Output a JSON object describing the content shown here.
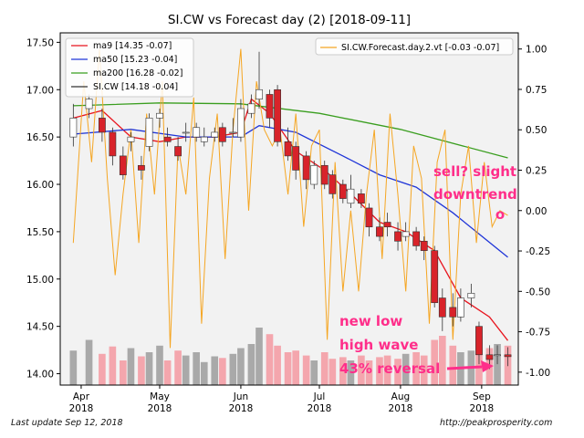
{
  "chart_data": {
    "type": "candlestick",
    "title": "SI.CW vs Forecast day (2)  [2018-09-11]",
    "x_ticks": [
      {
        "label": "Apr\n2018",
        "date": "2018-04-01"
      },
      {
        "label": "May\n2018",
        "date": "2018-05-01"
      },
      {
        "label": "Jun\n2018",
        "date": "2018-06-01"
      },
      {
        "label": "Jul\n2018",
        "date": "2018-07-01"
      },
      {
        "label": "Aug\n2018",
        "date": "2018-08-01"
      },
      {
        "label": "Sep\n2018",
        "date": "2018-09-01"
      }
    ],
    "xlim": [
      "2018-03-24",
      "2018-09-15"
    ],
    "y_left": {
      "ylim": [
        13.88,
        17.6
      ],
      "ticks": [
        "14.00",
        "14.50",
        "15.00",
        "15.50",
        "16.00",
        "16.50",
        "17.00",
        "17.50"
      ]
    },
    "y_right": {
      "ylim": [
        -1.08,
        1.1
      ],
      "ticks": [
        "-1.00",
        "-0.75",
        "-0.50",
        "-0.25",
        "0.00",
        "0.25",
        "0.50",
        "0.75",
        "1.00"
      ]
    },
    "legend_left": [
      {
        "label": "ma9 [14.35 -0.07]",
        "color": "#e8141e"
      },
      {
        "label": "ma50 [15.23 -0.04]",
        "color": "#1f35d8"
      },
      {
        "label": "ma200 [16.28 -0.02]",
        "color": "#3a9e1f"
      },
      {
        "label": "SI.CW [14.18 -0.04]",
        "color": "#333333"
      }
    ],
    "legend_right": [
      {
        "label": "SI.CW.Forecast.day.2.vt [-0.03 -0.07]",
        "color": "#f5a623"
      }
    ],
    "colors": {
      "up": "#ffffff",
      "down": "#d8232a",
      "wick": "#333333",
      "volume_up": "#a9a9a9",
      "volume_down": "#f4a6ad",
      "plot_bg": "#f2f2f2"
    },
    "series": [
      {
        "name": "SI.CW",
        "kind": "ohlc",
        "dates": [
          "2018-03-29",
          "2018-04-04",
          "2018-04-09",
          "2018-04-13",
          "2018-04-17",
          "2018-04-20",
          "2018-04-24",
          "2018-04-27",
          "2018-05-01",
          "2018-05-04",
          "2018-05-08",
          "2018-05-11",
          "2018-05-15",
          "2018-05-18",
          "2018-05-22",
          "2018-05-25",
          "2018-05-29",
          "2018-06-01",
          "2018-06-05",
          "2018-06-08",
          "2018-06-12",
          "2018-06-15",
          "2018-06-19",
          "2018-06-22",
          "2018-06-26",
          "2018-06-29",
          "2018-07-03",
          "2018-07-06",
          "2018-07-10",
          "2018-07-13",
          "2018-07-17",
          "2018-07-20",
          "2018-07-24",
          "2018-07-27",
          "2018-07-31",
          "2018-08-03",
          "2018-08-07",
          "2018-08-10",
          "2018-08-14",
          "2018-08-17",
          "2018-08-21",
          "2018-08-24",
          "2018-08-28",
          "2018-08-31",
          "2018-09-04",
          "2018-09-07",
          "2018-09-11"
        ],
        "open": [
          16.5,
          16.8,
          16.7,
          16.55,
          16.3,
          16.45,
          16.2,
          16.4,
          16.7,
          16.5,
          16.4,
          16.55,
          16.5,
          16.45,
          16.5,
          16.6,
          16.55,
          16.5,
          16.75,
          16.9,
          16.95,
          17.0,
          16.45,
          16.4,
          16.3,
          16.0,
          16.2,
          16.1,
          16.0,
          15.8,
          15.9,
          15.75,
          15.55,
          15.6,
          15.5,
          15.45,
          15.5,
          15.4,
          15.3,
          14.8,
          14.7,
          14.6,
          14.8,
          14.5,
          14.2,
          14.2,
          14.2
        ],
        "close": [
          16.7,
          16.9,
          16.55,
          16.3,
          16.1,
          16.5,
          16.15,
          16.7,
          16.75,
          16.45,
          16.3,
          16.55,
          16.6,
          16.5,
          16.55,
          16.45,
          16.55,
          16.8,
          16.85,
          17.0,
          16.7,
          16.45,
          16.3,
          16.15,
          16.05,
          16.2,
          16.0,
          15.9,
          15.85,
          15.95,
          15.8,
          15.55,
          15.45,
          15.55,
          15.4,
          15.5,
          15.35,
          15.3,
          14.75,
          14.6,
          14.6,
          14.8,
          14.85,
          14.2,
          14.15,
          14.2,
          14.18
        ],
        "high": [
          16.85,
          16.95,
          16.8,
          16.6,
          16.4,
          16.55,
          16.3,
          16.75,
          16.8,
          16.6,
          16.5,
          16.65,
          16.65,
          16.6,
          16.6,
          16.65,
          16.7,
          16.9,
          16.95,
          17.4,
          17.0,
          17.05,
          16.6,
          16.45,
          16.35,
          16.25,
          16.25,
          16.15,
          16.05,
          16.1,
          15.95,
          15.8,
          15.65,
          15.7,
          15.6,
          15.6,
          15.55,
          15.45,
          15.35,
          14.9,
          14.85,
          14.9,
          14.95,
          14.55,
          14.3,
          14.3,
          14.28
        ],
        "low": [
          16.4,
          16.7,
          16.45,
          16.2,
          16.05,
          16.35,
          16.05,
          16.35,
          16.6,
          16.4,
          16.25,
          16.45,
          16.45,
          16.4,
          16.45,
          16.4,
          16.5,
          16.45,
          16.7,
          16.8,
          16.6,
          16.4,
          16.25,
          16.05,
          15.95,
          15.95,
          15.95,
          15.85,
          15.8,
          15.75,
          15.75,
          15.45,
          15.4,
          15.45,
          15.3,
          15.4,
          15.3,
          15.2,
          14.7,
          14.45,
          14.5,
          14.55,
          14.7,
          14.1,
          14.05,
          14.1,
          14.08
        ]
      },
      {
        "name": "ma9",
        "color": "#e8141e",
        "dates": [
          "2018-03-29",
          "2018-04-09",
          "2018-04-20",
          "2018-05-01",
          "2018-05-11",
          "2018-05-22",
          "2018-06-01",
          "2018-06-05",
          "2018-06-12",
          "2018-06-22",
          "2018-07-03",
          "2018-07-13",
          "2018-07-24",
          "2018-08-03",
          "2018-08-14",
          "2018-08-24",
          "2018-09-04",
          "2018-09-11"
        ],
        "values": [
          16.7,
          16.78,
          16.5,
          16.45,
          16.5,
          16.5,
          16.55,
          16.9,
          16.75,
          16.35,
          16.15,
          15.9,
          15.6,
          15.5,
          15.3,
          14.8,
          14.6,
          14.35
        ]
      },
      {
        "name": "ma50",
        "color": "#1f35d8",
        "dates": [
          "2018-03-29",
          "2018-04-20",
          "2018-05-11",
          "2018-06-01",
          "2018-06-08",
          "2018-06-22",
          "2018-07-10",
          "2018-07-24",
          "2018-08-07",
          "2018-08-21",
          "2018-09-11"
        ],
        "values": [
          16.53,
          16.58,
          16.5,
          16.5,
          16.62,
          16.55,
          16.3,
          16.1,
          15.97,
          15.7,
          15.23
        ]
      },
      {
        "name": "ma200",
        "color": "#3a9e1f",
        "dates": [
          "2018-03-29",
          "2018-05-01",
          "2018-06-01",
          "2018-07-01",
          "2018-08-01",
          "2018-09-11"
        ],
        "values": [
          16.83,
          16.86,
          16.85,
          16.75,
          16.58,
          16.28
        ]
      },
      {
        "name": "SI.CW.Forecast.day.2.vt",
        "color": "#f5a623",
        "axis": "right",
        "dates": [
          "2018-03-29",
          "2018-04-02",
          "2018-04-05",
          "2018-04-08",
          "2018-04-11",
          "2018-04-14",
          "2018-04-17",
          "2018-04-20",
          "2018-04-23",
          "2018-04-26",
          "2018-04-29",
          "2018-05-02",
          "2018-05-05",
          "2018-05-08",
          "2018-05-11",
          "2018-05-14",
          "2018-05-17",
          "2018-05-20",
          "2018-05-23",
          "2018-05-26",
          "2018-05-29",
          "2018-06-01",
          "2018-06-04",
          "2018-06-07",
          "2018-06-10",
          "2018-06-13",
          "2018-06-16",
          "2018-06-19",
          "2018-06-22",
          "2018-06-25",
          "2018-06-28",
          "2018-07-01",
          "2018-07-04",
          "2018-07-07",
          "2018-07-10",
          "2018-07-13",
          "2018-07-16",
          "2018-07-19",
          "2018-07-22",
          "2018-07-25",
          "2018-07-28",
          "2018-07-31",
          "2018-08-03",
          "2018-08-06",
          "2018-08-09",
          "2018-08-12",
          "2018-08-15",
          "2018-08-18",
          "2018-08-21",
          "2018-08-24",
          "2018-08-27",
          "2018-08-30",
          "2018-09-02",
          "2018-09-05",
          "2018-09-08",
          "2018-09-11"
        ],
        "values": [
          -0.2,
          0.8,
          0.3,
          1.0,
          0.2,
          -0.4,
          0.1,
          0.5,
          -0.2,
          0.6,
          0.1,
          0.8,
          -0.85,
          0.4,
          0.1,
          0.7,
          -0.7,
          0.2,
          0.6,
          -0.3,
          0.5,
          1.0,
          0.0,
          0.8,
          0.5,
          0.4,
          0.5,
          0.1,
          0.6,
          -0.1,
          0.4,
          0.5,
          -0.8,
          0.3,
          -0.5,
          0.0,
          -0.5,
          0.1,
          0.5,
          -0.3,
          0.6,
          0.1,
          -0.5,
          0.4,
          0.2,
          -0.7,
          0.3,
          0.5,
          -0.8,
          0.1,
          0.4,
          -0.2,
          0.3,
          -0.1,
          0.0,
          -0.03
        ]
      }
    ],
    "volume": {
      "ylim": [
        0,
        1
      ],
      "values": [
        0.42,
        0.55,
        0.38,
        0.47,
        0.3,
        0.45,
        0.35,
        0.4,
        0.48,
        0.3,
        0.42,
        0.36,
        0.4,
        0.28,
        0.35,
        0.33,
        0.38,
        0.45,
        0.5,
        0.7,
        0.62,
        0.48,
        0.4,
        0.42,
        0.36,
        0.3,
        0.4,
        0.32,
        0.34,
        0.3,
        0.36,
        0.3,
        0.34,
        0.36,
        0.32,
        0.38,
        0.4,
        0.36,
        0.55,
        0.6,
        0.48,
        0.4,
        0.42,
        0.6,
        0.45,
        0.5,
        0.48
      ]
    },
    "annotations": [
      {
        "text": "sell? slight",
        "color": "#ff2e8a"
      },
      {
        "text": "downtrend",
        "color": "#ff2e8a"
      },
      {
        "text": "o",
        "color": "#ff2e8a"
      },
      {
        "text": "new low",
        "color": "#ff2e8a"
      },
      {
        "text": "high wave",
        "color": "#ff2e8a"
      },
      {
        "text": "43% reversal",
        "color": "#ff2e8a"
      }
    ]
  },
  "footer": {
    "left": "Last update Sep 12, 2018",
    "right": "http://peakprosperity.com"
  }
}
